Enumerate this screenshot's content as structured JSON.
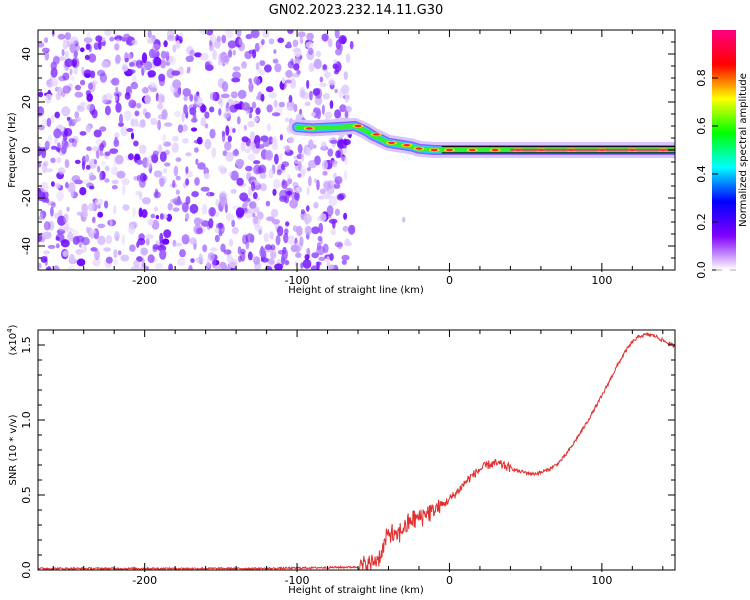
{
  "title": "GN02.2023.232.14.11.G30",
  "chart_data": [
    {
      "type": "heatmap",
      "xlabel": "Height of straight line (km)",
      "ylabel": "Frequency (Hz)",
      "xlim": [
        -270,
        148
      ],
      "ylim": [
        -50,
        50
      ],
      "x_ticks": [
        -200,
        -100,
        0,
        100
      ],
      "y_ticks": [
        -40,
        -20,
        0,
        20,
        40
      ],
      "noise_region_x": [
        -270,
        -70
      ],
      "signal_track": [
        {
          "x": -100,
          "y": 9.5
        },
        {
          "x": -90,
          "y": 9.0
        },
        {
          "x": -75,
          "y": 9.5
        },
        {
          "x": -62,
          "y": 10.0
        },
        {
          "x": -55,
          "y": 8.0
        },
        {
          "x": -50,
          "y": 6.0
        },
        {
          "x": -45,
          "y": 4.5
        },
        {
          "x": -40,
          "y": 3.0
        },
        {
          "x": -35,
          "y": 2.5
        },
        {
          "x": -30,
          "y": 2.0
        },
        {
          "x": -25,
          "y": 1.5
        },
        {
          "x": -20,
          "y": 0.5
        },
        {
          "x": -10,
          "y": 0.0
        },
        {
          "x": 0,
          "y": 0.0
        },
        {
          "x": 50,
          "y": 0.0
        },
        {
          "x": 148,
          "y": 0.0
        }
      ],
      "colorbar": {
        "label": "Normalized spectral amplitude",
        "range": [
          0.0,
          1.0
        ],
        "ticks": [
          "0.0",
          "0.2",
          "0.4",
          "0.6",
          "0.8"
        ],
        "colors": [
          "#ffffff",
          "#8000ff",
          "#0000ff",
          "#00ffff",
          "#00ff00",
          "#ffff00",
          "#ff0000",
          "#ff0080"
        ]
      }
    },
    {
      "type": "line",
      "xlabel": "Height of straight line (km)",
      "ylabel": "SNR (10 * v/v)",
      "y_multiplier": "(x10",
      "y_multiplier_exp": "4",
      "xlim": [
        -270,
        148
      ],
      "ylim": [
        0,
        1.6
      ],
      "x_ticks": [
        -200,
        -100,
        0,
        100
      ],
      "y_ticks": [
        "0.0",
        "0.5",
        "1.0",
        "1.5"
      ],
      "series": [
        {
          "color": "#e03030",
          "points": [
            [
              -270,
              0.01
            ],
            [
              -200,
              0.01
            ],
            [
              -120,
              0.01
            ],
            [
              -60,
              0.02
            ],
            [
              -55,
              0.03
            ],
            [
              -50,
              0.05
            ],
            [
              -45,
              0.1
            ],
            [
              -40,
              0.25
            ],
            [
              -35,
              0.22
            ],
            [
              -30,
              0.28
            ],
            [
              -25,
              0.33
            ],
            [
              -20,
              0.35
            ],
            [
              -15,
              0.38
            ],
            [
              -10,
              0.4
            ],
            [
              -5,
              0.43
            ],
            [
              0,
              0.47
            ],
            [
              5,
              0.52
            ],
            [
              10,
              0.58
            ],
            [
              15,
              0.63
            ],
            [
              20,
              0.67
            ],
            [
              25,
              0.7
            ],
            [
              30,
              0.71
            ],
            [
              35,
              0.7
            ],
            [
              40,
              0.68
            ],
            [
              45,
              0.66
            ],
            [
              50,
              0.65
            ],
            [
              55,
              0.64
            ],
            [
              60,
              0.65
            ],
            [
              65,
              0.67
            ],
            [
              70,
              0.7
            ],
            [
              75,
              0.75
            ],
            [
              80,
              0.82
            ],
            [
              85,
              0.9
            ],
            [
              90,
              0.98
            ],
            [
              95,
              1.07
            ],
            [
              100,
              1.16
            ],
            [
              105,
              1.26
            ],
            [
              110,
              1.36
            ],
            [
              115,
              1.45
            ],
            [
              120,
              1.52
            ],
            [
              125,
              1.56
            ],
            [
              130,
              1.57
            ],
            [
              135,
              1.56
            ],
            [
              140,
              1.53
            ],
            [
              148,
              1.49
            ]
          ]
        }
      ]
    }
  ]
}
